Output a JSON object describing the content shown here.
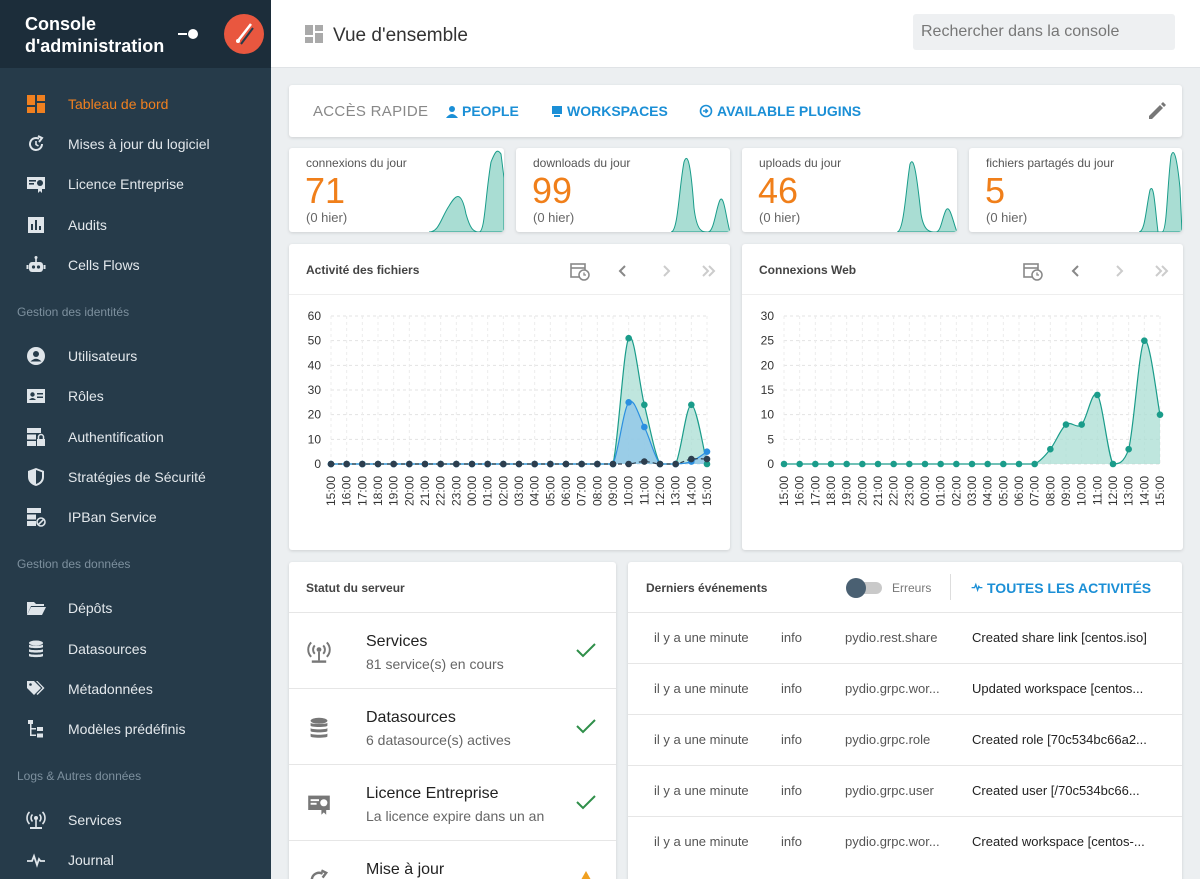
{
  "sidebar": {
    "title": "Console d'administration",
    "items": [
      {
        "label": "Tableau de bord",
        "icon": "dashboard-icon",
        "active": true
      },
      {
        "label": "Mises à jour du logiciel",
        "icon": "update-icon"
      },
      {
        "label": "Licence Entreprise",
        "icon": "license-icon"
      },
      {
        "label": "Audits",
        "icon": "chart-bar-icon"
      },
      {
        "label": "Cells Flows",
        "icon": "robot-icon"
      }
    ],
    "section_identities": "Gestion des identités",
    "identity_items": [
      {
        "label": "Utilisateurs",
        "icon": "user-circle-icon"
      },
      {
        "label": "Rôles",
        "icon": "id-card-icon"
      },
      {
        "label": "Authentification",
        "icon": "server-lock-icon"
      },
      {
        "label": "Stratégies de Sécurité",
        "icon": "shield-icon"
      },
      {
        "label": "IPBan Service",
        "icon": "server-ban-icon"
      }
    ],
    "section_data": "Gestion des données",
    "data_items": [
      {
        "label": "Dépôts",
        "icon": "folder-open-icon"
      },
      {
        "label": "Datasources",
        "icon": "database-icon"
      },
      {
        "label": "Métadonnées",
        "icon": "tags-icon"
      },
      {
        "label": "Modèles prédéfinis",
        "icon": "file-tree-icon"
      }
    ],
    "section_logs": "Logs & Autres données",
    "log_items": [
      {
        "label": "Services",
        "icon": "broadcast-icon"
      },
      {
        "label": "Journal",
        "icon": "pulse-icon"
      }
    ]
  },
  "header": {
    "title": "Vue d'ensemble",
    "search_placeholder": "Rechercher dans la console"
  },
  "quick_access": {
    "label": "ACCÈS RAPIDE",
    "links": [
      "PEOPLE",
      "WORKSPACES",
      "AVAILABLE PLUGINS"
    ]
  },
  "stats": [
    {
      "label": "connexions du jour",
      "value": "71",
      "previous": "(0 hier)"
    },
    {
      "label": "downloads du jour",
      "value": "99",
      "previous": "(0 hier)"
    },
    {
      "label": "uploads du jour",
      "value": "46",
      "previous": "(0 hier)"
    },
    {
      "label": "fichiers partagés du jour",
      "value": "5",
      "previous": "(0 hier)"
    }
  ],
  "chart_data": [
    {
      "type": "area",
      "title": "Activité des fichiers",
      "x": [
        "15:00",
        "16:00",
        "17:00",
        "18:00",
        "19:00",
        "20:00",
        "21:00",
        "22:00",
        "23:00",
        "00:00",
        "01:00",
        "02:00",
        "03:00",
        "04:00",
        "05:00",
        "06:00",
        "07:00",
        "08:00",
        "09:00",
        "10:00",
        "11:00",
        "12:00",
        "13:00",
        "14:00",
        "15:00"
      ],
      "ylim": [
        0,
        60
      ],
      "yticks": [
        0,
        10,
        20,
        30,
        40,
        50,
        60
      ],
      "grid": true,
      "series": [
        {
          "color": "#1a9c8a",
          "fill": "#a9ddd3",
          "values": [
            0,
            0,
            0,
            0,
            0,
            0,
            0,
            0,
            0,
            0,
            0,
            0,
            0,
            0,
            0,
            0,
            0,
            0,
            0,
            51,
            24,
            0,
            0,
            24,
            0
          ]
        },
        {
          "color": "#2b8fe0",
          "fill": "#8ec4ea",
          "values": [
            0,
            0,
            0,
            0,
            0,
            0,
            0,
            0,
            0,
            0,
            0,
            0,
            0,
            0,
            0,
            0,
            0,
            0,
            0,
            25,
            15,
            0,
            0,
            1,
            5
          ]
        },
        {
          "color": "#2d3e4e",
          "fill": "none",
          "values": [
            0,
            0,
            0,
            0,
            0,
            0,
            0,
            0,
            0,
            0,
            0,
            0,
            0,
            0,
            0,
            0,
            0,
            0,
            0,
            0,
            1,
            0,
            0,
            2,
            2
          ]
        }
      ]
    },
    {
      "type": "area",
      "title": "Connexions Web",
      "x": [
        "15:00",
        "16:00",
        "17:00",
        "18:00",
        "19:00",
        "20:00",
        "21:00",
        "22:00",
        "23:00",
        "00:00",
        "01:00",
        "02:00",
        "03:00",
        "04:00",
        "05:00",
        "06:00",
        "07:00",
        "08:00",
        "09:00",
        "10:00",
        "11:00",
        "12:00",
        "13:00",
        "14:00",
        "15:00"
      ],
      "ylim": [
        0,
        30
      ],
      "yticks": [
        0,
        5,
        10,
        15,
        20,
        25,
        30
      ],
      "grid": true,
      "series": [
        {
          "color": "#1a9c8a",
          "fill": "#a9ddd3",
          "values": [
            0,
            0,
            0,
            0,
            0,
            0,
            0,
            0,
            0,
            0,
            0,
            0,
            0,
            0,
            0,
            0,
            0,
            3,
            8,
            8,
            14,
            0,
            3,
            25,
            10
          ]
        }
      ]
    }
  ],
  "server_status": {
    "title": "Statut du serveur",
    "rows": [
      {
        "title": "Services",
        "subtitle": "81 service(s) en cours",
        "icon": "broadcast-icon",
        "status": "ok"
      },
      {
        "title": "Datasources",
        "subtitle": "6 datasource(s) actives",
        "icon": "database-icon",
        "status": "ok"
      },
      {
        "title": "Licence Entreprise",
        "subtitle": "La licence expire dans un an",
        "icon": "license-icon",
        "status": "ok"
      },
      {
        "title": "Mise à jour",
        "subtitle": "",
        "icon": "update-icon",
        "status": "warning"
      }
    ]
  },
  "events": {
    "title": "Derniers événements",
    "errors_label": "Erreurs",
    "all_label": "TOUTES LES ACTIVITÉS",
    "rows": [
      [
        "il y a une minute",
        "info",
        "pydio.rest.share",
        "Created share link [centos.iso]"
      ],
      [
        "il y a une minute",
        "info",
        "pydio.grpc.wor...",
        "Updated workspace [centos..."
      ],
      [
        "il y a une minute",
        "info",
        "pydio.grpc.role",
        "Created role [70c534bc66a2..."
      ],
      [
        "il y a une minute",
        "info",
        "pydio.grpc.user",
        "Created user [/70c534bc66..."
      ],
      [
        "il y a une minute",
        "info",
        "pydio.grpc.wor...",
        "Created workspace [centos-..."
      ]
    ]
  },
  "colors": {
    "accent": "#f07f1a",
    "link": "#1b8fd6",
    "sidebar": "#263b4a",
    "teal": "#1a9c8a"
  }
}
